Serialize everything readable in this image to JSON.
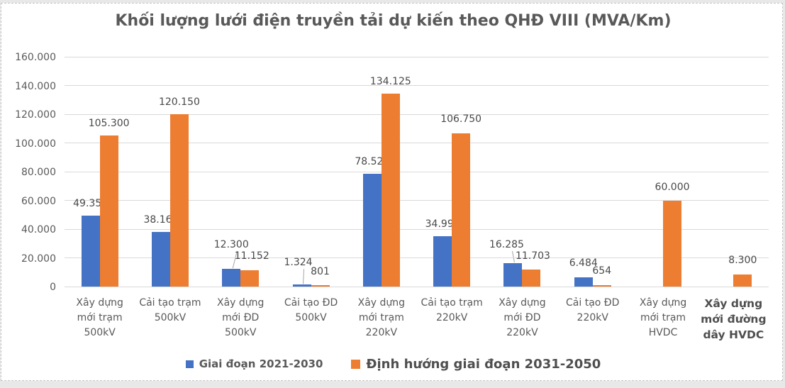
{
  "chart_data": {
    "type": "bar",
    "title": "Khối lượng lưới điện truyền tải dự kiến theo QHĐ VIII (MVA/Km)",
    "ylim": [
      0,
      160000
    ],
    "ytick_step": 20000,
    "yticks": [
      "0",
      "20.000",
      "40.000",
      "60.000",
      "80.000",
      "100.000",
      "120.000",
      "140.000",
      "160.000"
    ],
    "grid": true,
    "legend_position": "bottom",
    "grid_color": "#d9d9d9",
    "text_color": "#595959",
    "categories": [
      "Xây dựng mới trạm 500kV",
      "Cải tạo trạm 500kV",
      "Xây dựng mới ĐD 500kV",
      "Cải tạo ĐD 500kV",
      "Xây dựng mới trạm 220kV",
      "Cải tạo trạm 220kV",
      "Xây dựng mới ĐD 220kV",
      "Cải tạo ĐD 220kV",
      "Xây dựng mới trạm HVDC",
      "Xây dựng mới đường dây HVDC"
    ],
    "category_lines": [
      [
        "Xây dựng",
        "mới trạm",
        "500kV"
      ],
      [
        "Cải tạo trạm",
        "500kV"
      ],
      [
        "Xây dựng",
        "mới ĐD",
        "500kV"
      ],
      [
        "Cải tạo ĐD",
        "500kV"
      ],
      [
        "Xây dựng",
        "mới trạm",
        "220kV"
      ],
      [
        "Cải tạo trạm",
        "220kV"
      ],
      [
        "Xây dựng",
        "mới ĐD",
        "220kV"
      ],
      [
        "Cải tạo ĐD",
        "220kV"
      ],
      [
        "Xây dựng",
        "mới trạm",
        "HVDC"
      ],
      [
        "Xây dựng",
        "mới đường",
        "dây HVDC"
      ]
    ],
    "series": [
      {
        "name": "Giai đoạn 2021-2030",
        "color": "#4472C4",
        "values": [
          49350,
          38168,
          12300,
          1324,
          78525,
          34997,
          16285,
          6484,
          null,
          null
        ],
        "labels": [
          "49.350",
          "38.168",
          "12.300",
          "1.324",
          "78.525",
          "34.997",
          "16.285",
          "6.484",
          "",
          ""
        ],
        "label_dx": [
          0,
          0,
          0,
          -5,
          0,
          0,
          -9,
          0,
          0,
          0
        ],
        "label_dy": [
          0,
          0,
          -17,
          -14,
          0,
          0,
          -9,
          -3,
          0,
          0
        ],
        "leaders": [
          false,
          false,
          true,
          true,
          false,
          false,
          true,
          false,
          false,
          false
        ]
      },
      {
        "name": "Định hướng giai đoạn 2031-2050",
        "color": "#ED7D31",
        "values": [
          105300,
          120150,
          11152,
          801,
          134125,
          106750,
          11703,
          654,
          60000,
          8300
        ],
        "labels": [
          "105.300",
          "120.150",
          "11.152",
          "801",
          "134.125",
          "106.750",
          "11.703",
          "654",
          "60.000",
          "8.300"
        ],
        "label_dx": [
          0,
          0,
          3,
          0,
          0,
          0,
          2,
          0,
          0,
          0
        ],
        "label_dy": [
          0,
          0,
          -3,
          -2,
          0,
          -3,
          -2,
          -3,
          -2,
          -3
        ],
        "leaders": [
          false,
          false,
          false,
          false,
          false,
          false,
          false,
          false,
          false,
          false
        ]
      }
    ]
  }
}
